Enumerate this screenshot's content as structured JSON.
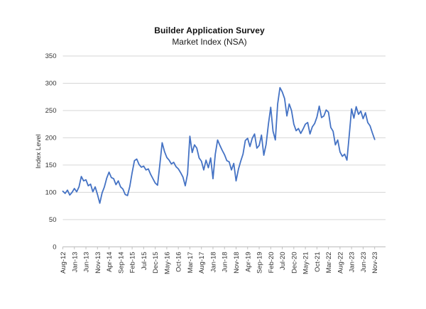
{
  "chart_data": {
    "type": "line",
    "title": "Builder Application Survey",
    "subtitle": "Market Index (NSA)",
    "ylabel": "Index Level",
    "xlabel": "",
    "ylim": [
      0,
      350
    ],
    "y_tick_step": 50,
    "y_tick_labels": [
      "0",
      "50",
      "100",
      "150",
      "200",
      "250",
      "300",
      "350"
    ],
    "grid": true,
    "legend_position": "none",
    "frequency": "monthly",
    "x_range": [
      "Aug-12",
      "Nov-23"
    ],
    "x_tick_interval": 5,
    "x_tick_labels": [
      "Aug-12",
      "Jan-13",
      "Jun-13",
      "Nov-13",
      "Apr-14",
      "Sep-14",
      "Feb-15",
      "Jul-15",
      "Dec-15",
      "May-16",
      "Oct-16",
      "Mar-17",
      "Aug-17",
      "Jan-18",
      "Jun-18",
      "Nov-18",
      "Apr-19",
      "Sep-19",
      "Feb-20",
      "Jul-20",
      "Dec-20",
      "May-21",
      "Oct-21",
      "Mar-22",
      "Aug-22",
      "Jan-23",
      "Jun-23",
      "Nov-23"
    ],
    "series": [
      {
        "name": "Market Index (NSA)",
        "values": [
          102,
          98,
          104,
          95,
          100,
          107,
          101,
          110,
          129,
          121,
          123,
          112,
          115,
          101,
          110,
          96,
          80,
          99,
          110,
          126,
          137,
          127,
          125,
          114,
          121,
          110,
          106,
          96,
          94,
          111,
          136,
          158,
          161,
          151,
          146,
          148,
          141,
          143,
          133,
          125,
          117,
          113,
          151,
          191,
          175,
          164,
          159,
          152,
          155,
          147,
          143,
          136,
          128,
          112,
          134,
          203,
          173,
          187,
          181,
          163,
          157,
          141,
          159,
          145,
          163,
          125,
          170,
          196,
          186,
          177,
          169,
          158,
          156,
          141,
          153,
          121,
          142,
          157,
          170,
          195,
          199,
          184,
          199,
          207,
          181,
          186,
          205,
          168,
          188,
          225,
          256,
          212,
          196,
          262,
          292,
          284,
          272,
          240,
          262,
          250,
          225,
          213,
          217,
          208,
          216,
          225,
          228,
          207,
          220,
          226,
          238,
          258,
          237,
          240,
          251,
          247,
          219,
          212,
          187,
          196,
          174,
          166,
          170,
          159,
          205,
          253,
          236,
          257,
          243,
          249,
          235,
          246,
          228,
          222,
          209,
          197
        ]
      }
    ],
    "colors": {
      "line": "#4472C4",
      "gridline": "#D6D6D6",
      "axis_line": "#BFBFBF",
      "tick_text": "#333333",
      "background": "#FFFFFF"
    }
  }
}
